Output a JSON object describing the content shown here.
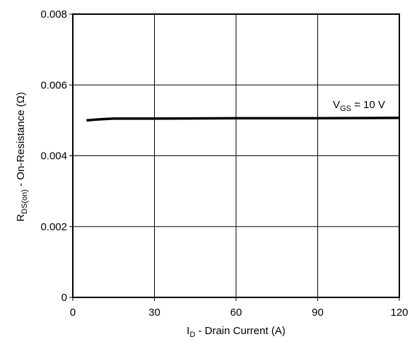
{
  "chart_data": {
    "type": "line",
    "xlabel": {
      "main": "I",
      "sub": "D",
      "rest": " - Drain Current (A)"
    },
    "ylabel": {
      "main": "R",
      "sub": "DS(on)",
      "rest": " - On-Resistance (Ω)"
    },
    "xlim": [
      0,
      120
    ],
    "ylim": [
      0,
      0.008
    ],
    "x_ticks": [
      0,
      30,
      60,
      90,
      120
    ],
    "x_tick_labels": [
      "0",
      "30",
      "60",
      "90",
      "120"
    ],
    "y_ticks": [
      0,
      0.002,
      0.004,
      0.006,
      0.008
    ],
    "y_tick_labels": [
      "0",
      "0.002",
      "0.004",
      "0.006",
      "0.008"
    ],
    "grid": true,
    "series": [
      {
        "label_main": "V",
        "label_sub": "GS",
        "label_rest": " = 10 V",
        "x": [
          5,
          10,
          15,
          30,
          60,
          90,
          120
        ],
        "y": [
          0.005,
          0.00503,
          0.00505,
          0.00505,
          0.00506,
          0.00506,
          0.00507
        ]
      }
    ],
    "colors": {
      "line": "#000000",
      "grid": "#000000",
      "background": "#ffffff"
    }
  }
}
